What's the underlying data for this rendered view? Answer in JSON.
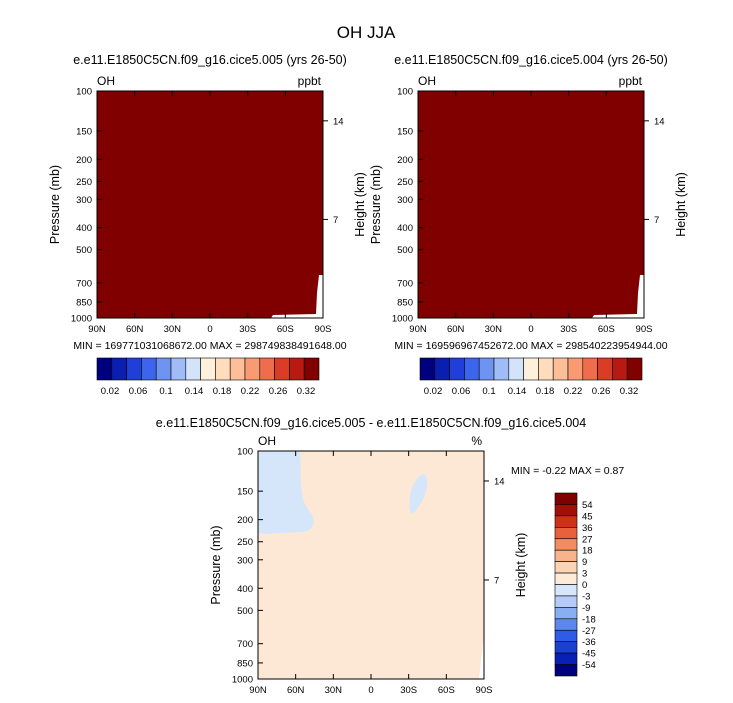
{
  "figure": {
    "title": "OH JJA"
  },
  "colors": {
    "abs_scale": [
      "#00007f",
      "#0a1fb0",
      "#1f3fd8",
      "#3c64ec",
      "#6e94f2",
      "#a0bcf6",
      "#d2e3fa",
      "#fff0dc",
      "#fedcbc",
      "#fcbf9a",
      "#f89a72",
      "#ef6d4c",
      "#d93d26",
      "#b81a12",
      "#800000"
    ],
    "diff_scale": [
      "#00007f",
      "#0a20b4",
      "#1840d2",
      "#2f5ce6",
      "#5c88ee",
      "#8aaef3",
      "#b6ccf8",
      "#d8e6fb",
      "#fdebd8",
      "#fcd4b4",
      "#f8b28c",
      "#f28c62",
      "#e8603c",
      "#d03018",
      "#a01008",
      "#800000"
    ]
  },
  "chart_data": [
    {
      "type": "heatmap",
      "title": "e.e11.E1850C5CN.f09_g16.cice5.005 (yrs 26-50)",
      "left_label": "OH",
      "right_label": "ppbt",
      "xlabel": "",
      "ylabel": "Pressure (mb)",
      "ylabel_right": "Height (km)",
      "x_ticks": [
        "90N",
        "60N",
        "30N",
        "0",
        "30S",
        "60S",
        "90S"
      ],
      "y_ticks": [
        "100",
        "150",
        "200",
        "250",
        "300",
        "400",
        "500",
        "700",
        "850",
        "1000"
      ],
      "y_ticks_right": [
        "14",
        "7"
      ],
      "min_max_text": "MIN = 169771031068672.00   MAX = 298749838491648.00",
      "fill_color": "#800000",
      "colorbar": {
        "orientation": "horizontal",
        "labels": [
          "0.02",
          "0.06",
          "0.1",
          "0.14",
          "0.18",
          "0.22",
          "0.26",
          "0.32"
        ]
      }
    },
    {
      "type": "heatmap",
      "title": "e.e11.E1850C5CN.f09_g16.cice5.004 (yrs 26-50)",
      "left_label": "OH",
      "right_label": "ppbt",
      "xlabel": "",
      "ylabel": "Pressure (mb)",
      "ylabel_right": "Height (km)",
      "x_ticks": [
        "90N",
        "60N",
        "30N",
        "0",
        "30S",
        "60S",
        "90S"
      ],
      "y_ticks": [
        "100",
        "150",
        "200",
        "250",
        "300",
        "400",
        "500",
        "700",
        "850",
        "1000"
      ],
      "y_ticks_right": [
        "14",
        "7"
      ],
      "min_max_text": "MIN = 169596967452672.00   MAX = 298540223954944.00",
      "fill_color": "#800000",
      "colorbar": {
        "orientation": "horizontal",
        "labels": [
          "0.02",
          "0.06",
          "0.1",
          "0.14",
          "0.18",
          "0.22",
          "0.26",
          "0.32"
        ]
      }
    },
    {
      "type": "heatmap",
      "title": "e.e11.E1850C5CN.f09_g16.cice5.005 - e.e11.E1850C5CN.f09_g16.cice5.004",
      "left_label": "OH",
      "right_label": "%",
      "xlabel": "",
      "ylabel": "Pressure (mb)",
      "ylabel_right": "Height (km)",
      "x_ticks": [
        "90N",
        "60N",
        "30N",
        "0",
        "30S",
        "60S",
        "90S"
      ],
      "y_ticks": [
        "100",
        "150",
        "200",
        "250",
        "300",
        "400",
        "500",
        "700",
        "850",
        "1000"
      ],
      "y_ticks_right": [
        "14",
        "7"
      ],
      "min": -0.22,
      "max": 0.87,
      "min_max_text": "MIN = -0.22  MAX =  0.87",
      "fill_color": "#fde8d6",
      "negative_region_color": "#d6e6fa",
      "colorbar": {
        "orientation": "vertical",
        "labels": [
          "54",
          "45",
          "36",
          "27",
          "18",
          "9",
          "3",
          "0",
          "-3",
          "-9",
          "-18",
          "-27",
          "-36",
          "-45",
          "-54"
        ]
      }
    }
  ]
}
